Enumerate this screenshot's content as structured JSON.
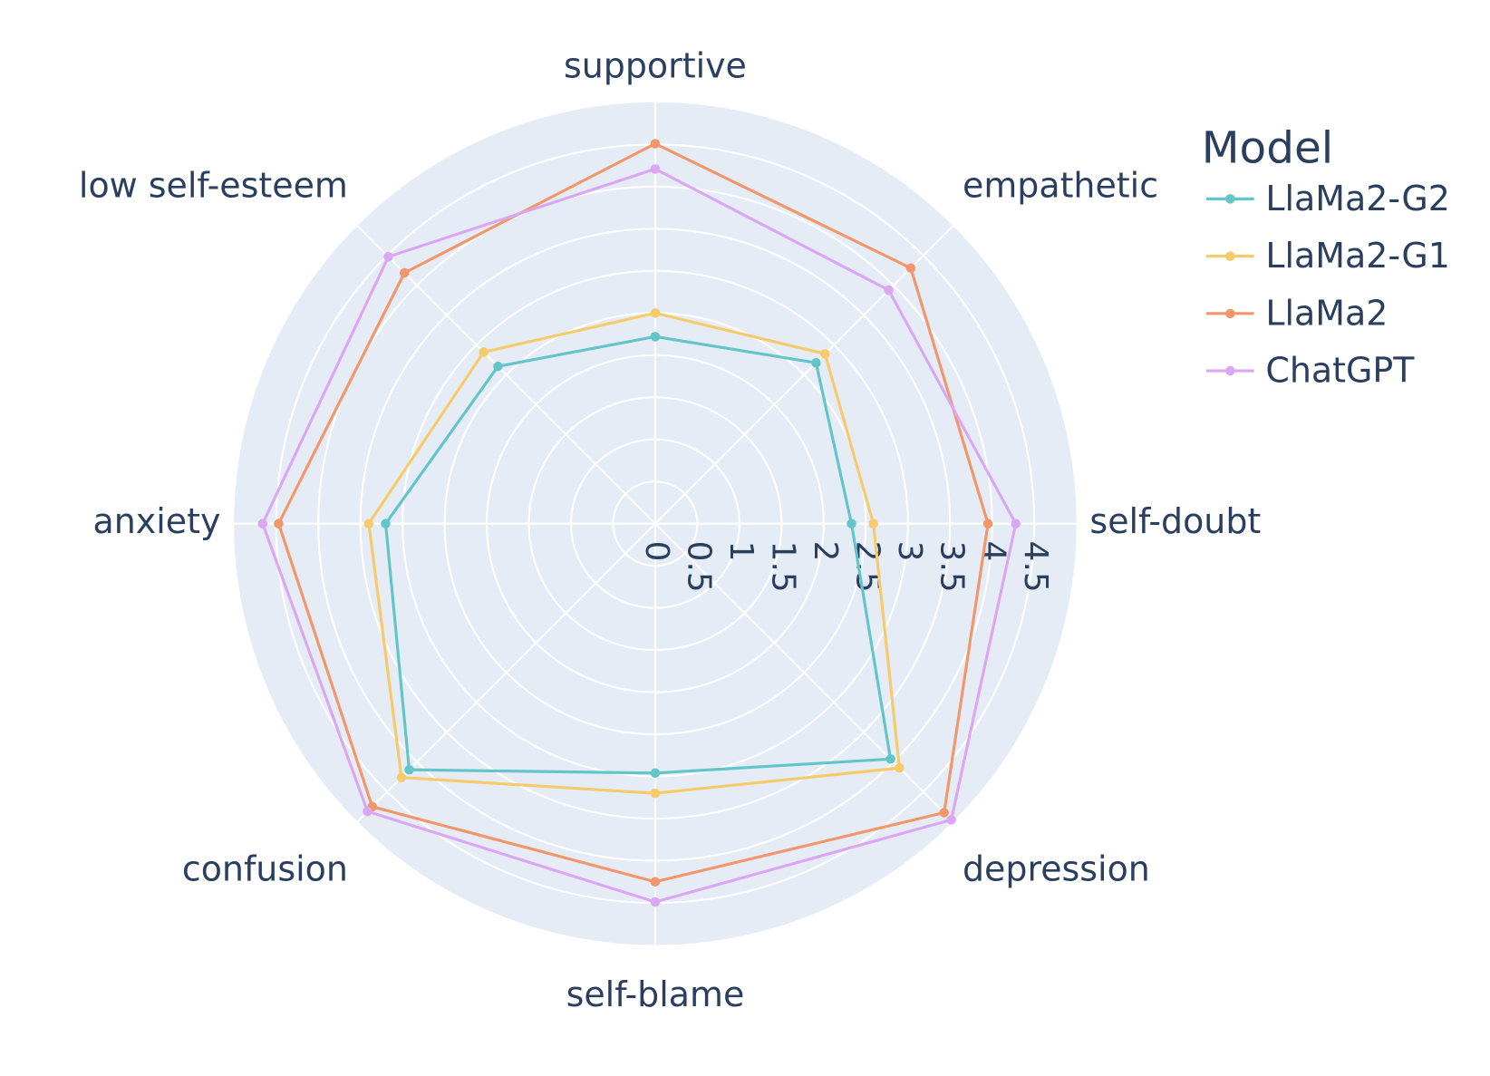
{
  "chart_data": {
    "type": "radar",
    "categories": [
      "supportive",
      "empathetic",
      "self-doubt",
      "depression",
      "self-blame",
      "confusion",
      "anxiety",
      "low self-esteem"
    ],
    "series": [
      {
        "name": "LlaMa2-G2",
        "color": "#63c5c9",
        "values": [
          2.22,
          2.7,
          2.33,
          3.95,
          2.96,
          4.13,
          3.2,
          2.64
        ]
      },
      {
        "name": "LlaMa2-G1",
        "color": "#f6cb6c",
        "values": [
          2.5,
          2.85,
          2.59,
          4.1,
          3.2,
          4.26,
          3.4,
          2.88
        ]
      },
      {
        "name": "LlaMa2",
        "color": "#f2976b",
        "values": [
          4.51,
          4.29,
          3.95,
          4.85,
          4.25,
          4.75,
          4.47,
          4.21
        ]
      },
      {
        "name": "ChatGPT",
        "color": "#dba7f2",
        "values": [
          4.21,
          3.92,
          4.28,
          4.97,
          4.49,
          4.83,
          4.66,
          4.48
        ]
      }
    ],
    "rlim": [
      0,
      5
    ],
    "rticks": [
      0,
      0.5,
      1,
      1.5,
      2,
      2.5,
      3,
      3.5,
      4,
      4.5
    ],
    "legend_title": "Model",
    "grid": true
  }
}
